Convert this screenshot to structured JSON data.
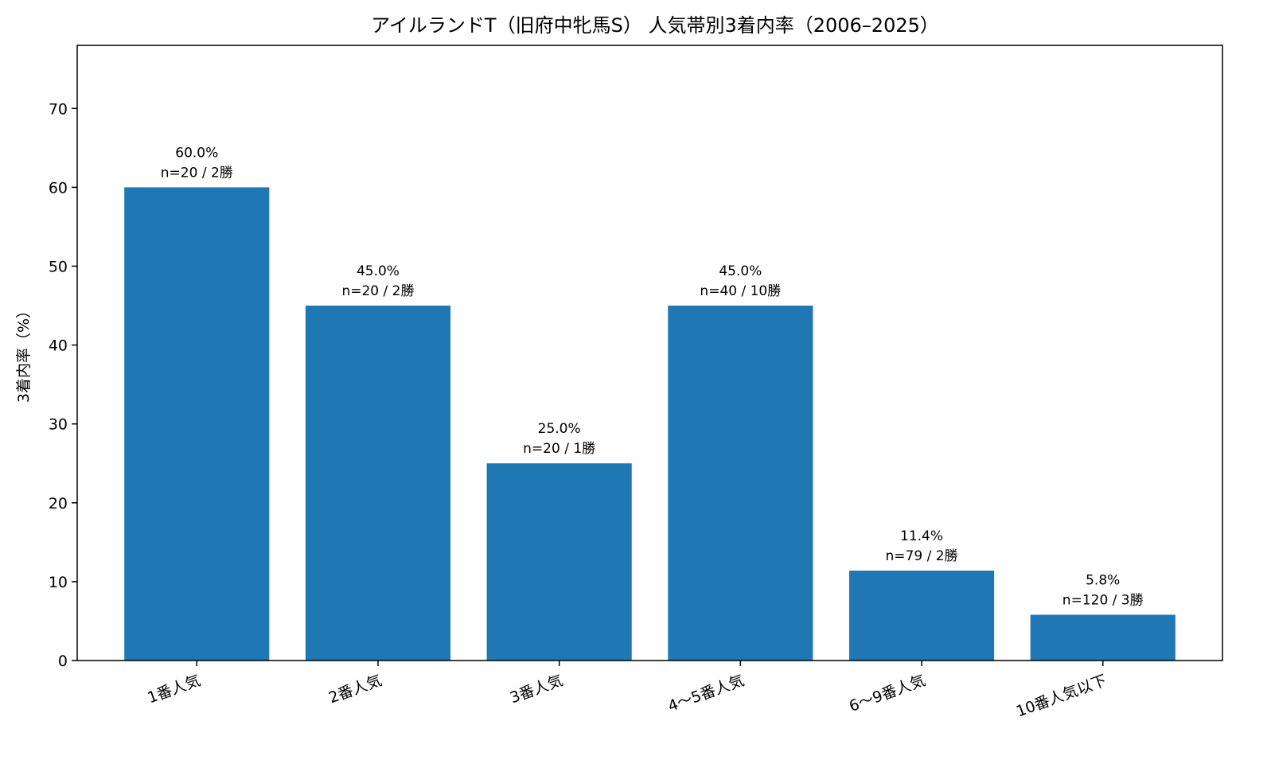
{
  "chart_data": {
    "type": "bar",
    "title": "アイルランドT（旧府中牝馬S） 人気帯別3着内率（2006–2025）",
    "xlabel": "",
    "ylabel": "3着内率（%）",
    "ylim": [
      0,
      78
    ],
    "yticks": [
      0,
      10,
      20,
      30,
      40,
      50,
      60,
      70
    ],
    "grid": false,
    "legend": "none",
    "categories": [
      "1番人気",
      "2番人気",
      "3番人気",
      "4〜5番人気",
      "6〜9番人気",
      "10番人気以下"
    ],
    "values": [
      60.0,
      45.0,
      25.0,
      45.0,
      11.4,
      5.8
    ],
    "value_labels": [
      "60.0%",
      "45.0%",
      "25.0%",
      "45.0%",
      "11.4%",
      "5.8%"
    ],
    "count_labels": [
      "n=20 / 2勝",
      "n=20 / 2勝",
      "n=20 / 1勝",
      "n=40 / 10勝",
      "n=79 / 2勝",
      "n=120 / 3勝"
    ],
    "bar_color": "#1f77b4"
  }
}
